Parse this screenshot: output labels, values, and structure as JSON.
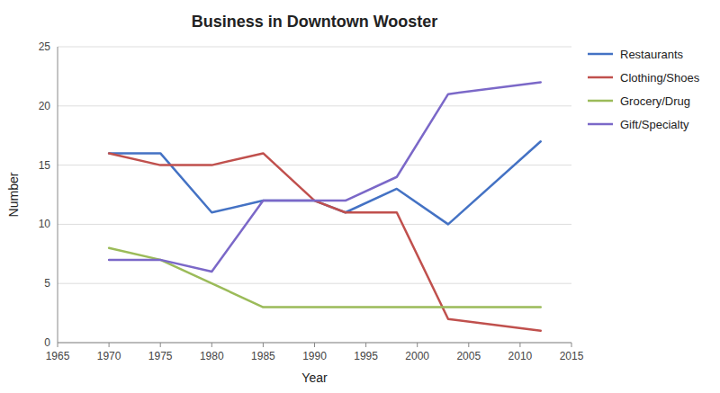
{
  "chart_data": {
    "type": "line",
    "title": "Business in Downtown Wooster",
    "xlabel": "Year",
    "ylabel": "Number",
    "x": [
      1970,
      1975,
      1980,
      1985,
      1990,
      1993,
      1998,
      2003,
      2012
    ],
    "series": [
      {
        "name": "Restaurants",
        "color": "#4472C4",
        "values": [
          16,
          16,
          11,
          12,
          12,
          11,
          13,
          10,
          17
        ]
      },
      {
        "name": "Clothing/Shoes",
        "color": "#C0504D",
        "values": [
          16,
          15,
          15,
          16,
          12,
          11,
          11,
          2,
          1
        ]
      },
      {
        "name": "Grocery/Drug",
        "color": "#9BBB59",
        "values": [
          8,
          7,
          5,
          3,
          3,
          3,
          3,
          3,
          3
        ]
      },
      {
        "name": "Gift/Specialty",
        "color": "#7B68C8",
        "values": [
          7,
          7,
          6,
          12,
          12,
          12,
          14,
          21,
          22
        ]
      }
    ],
    "xlim": [
      1965,
      2015
    ],
    "xticks": [
      1965,
      1970,
      1975,
      1980,
      1985,
      1990,
      1995,
      2000,
      2005,
      2010,
      2015
    ],
    "ylim": [
      0,
      25
    ],
    "yticks": [
      0,
      5,
      10,
      15,
      20,
      25
    ],
    "grid": true,
    "legend": "right"
  }
}
